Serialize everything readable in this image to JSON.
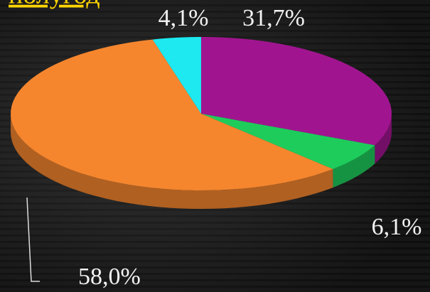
{
  "chart_data": {
    "type": "pie3d",
    "title": "полугод",
    "values": [
      31.7,
      6.1,
      58.0,
      4.1
    ],
    "value_labels": [
      "31,7%",
      "6,1%",
      "58,0%",
      "4,1%"
    ],
    "colors": [
      "#a0158f",
      "#1ecc5c",
      "#f5862e",
      "#1ee8f0"
    ]
  }
}
